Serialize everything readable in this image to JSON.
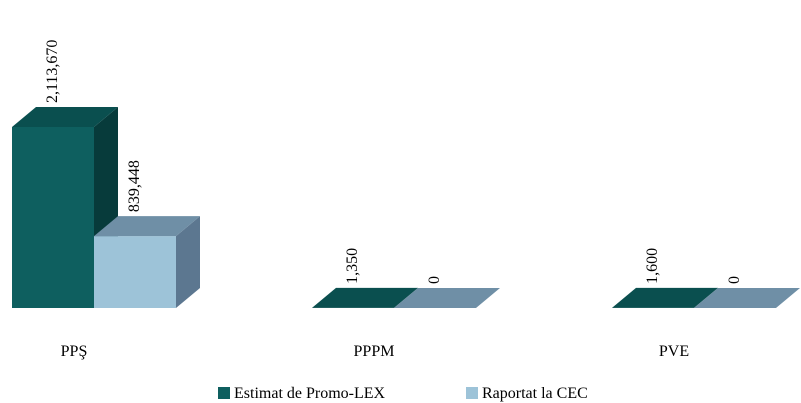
{
  "chart_data": {
    "type": "bar",
    "categories": [
      "PPŞ",
      "PPPM",
      "PVE"
    ],
    "series": [
      {
        "name": "Estimat de Promo-LEX",
        "color": "#0e5f5f",
        "values": [
          2113670,
          1350,
          1600
        ],
        "value_labels": [
          "2,113,670",
          "1,350",
          "1,600"
        ]
      },
      {
        "name": "Raportat la CEC",
        "color": "#9dc3d8",
        "values": [
          839448,
          0,
          0
        ],
        "value_labels": [
          "839,448",
          "0",
          "0"
        ]
      }
    ],
    "legend": "bottom"
  }
}
